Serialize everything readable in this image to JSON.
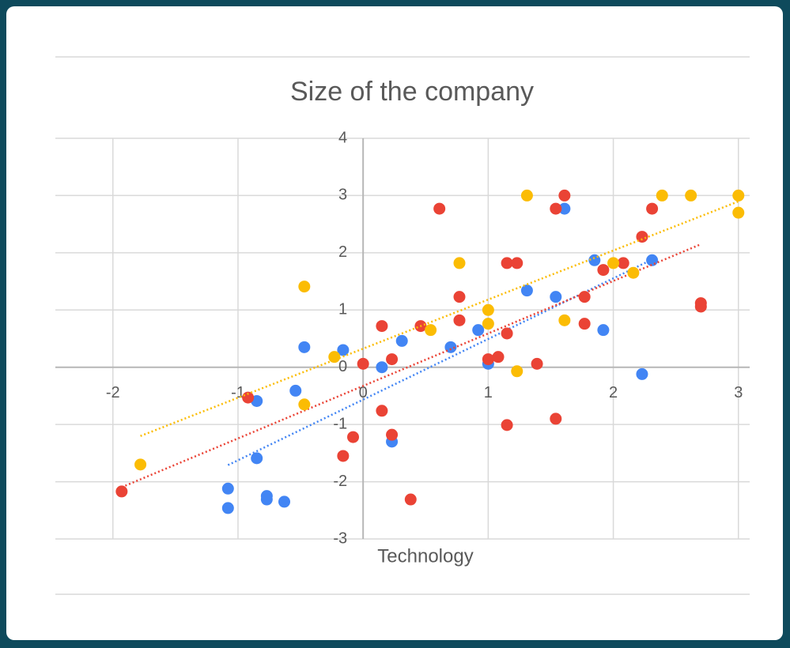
{
  "chart_data": {
    "type": "scatter",
    "title": "Size of the company",
    "x_label": "Technology",
    "xlim": [
      -2.46,
      3.09
    ],
    "ylim": [
      -3,
      4
    ],
    "xticks": [
      -2,
      -1,
      0,
      1,
      2,
      3
    ],
    "yticks": [
      -3,
      -2,
      -1,
      0,
      1,
      2,
      3,
      4
    ],
    "grid": true,
    "series": [
      {
        "color": "#4285f4",
        "trendline": true,
        "x": [
          -1.08,
          -1.08,
          -0.85,
          -0.85,
          -0.77,
          -0.77,
          -0.63,
          -0.54,
          -0.47,
          -0.16,
          0.15,
          0.23,
          0.31,
          0.7,
          0.92,
          1.0,
          1.31,
          1.54,
          1.61,
          1.85,
          1.92,
          2.23,
          2.31
        ],
        "values": [
          -2.12,
          -2.46,
          -0.59,
          -1.59,
          -2.25,
          -2.31,
          -2.35,
          -0.41,
          0.35,
          0.3,
          0.0,
          -1.3,
          0.46,
          0.35,
          0.65,
          0.06,
          1.34,
          1.23,
          2.77,
          1.87,
          0.65,
          -0.12,
          1.87
        ]
      },
      {
        "color": "#ea4335",
        "trendline": true,
        "x": [
          -1.93,
          -0.92,
          -0.16,
          -0.08,
          0,
          0.15,
          0.15,
          0.23,
          0.23,
          0.38,
          0.46,
          0.61,
          0.77,
          0.77,
          1.0,
          1.08,
          1.15,
          1.15,
          1.15,
          1.23,
          1.39,
          1.54,
          1.54,
          1.61,
          1.77,
          1.77,
          1.92,
          2.08,
          2.23,
          2.31,
          2.7,
          2.7
        ],
        "values": [
          -2.17,
          -0.53,
          -1.55,
          -1.22,
          0.06,
          0.72,
          -0.76,
          0.14,
          -1.18,
          -2.31,
          0.72,
          2.77,
          1.23,
          0.82,
          0.14,
          0.18,
          1.82,
          0.59,
          -1.01,
          1.82,
          0.06,
          2.77,
          -0.9,
          3.0,
          1.23,
          0.76,
          1.7,
          1.82,
          2.28,
          2.77,
          1.12,
          1.06
        ]
      },
      {
        "color": "#fbbc04",
        "trendline": true,
        "x": [
          -1.78,
          -0.47,
          -0.47,
          -0.23,
          0.54,
          0.77,
          1.0,
          1.0,
          1.23,
          1.31,
          1.61,
          2.0,
          2.16,
          2.39,
          2.62,
          3.0,
          3.0
        ],
        "values": [
          -1.7,
          1.41,
          -0.65,
          0.18,
          0.65,
          1.82,
          1.0,
          0.76,
          -0.07,
          3.0,
          0.82,
          1.82,
          1.65,
          3.0,
          3.0,
          3.0,
          2.7
        ]
      }
    ]
  }
}
